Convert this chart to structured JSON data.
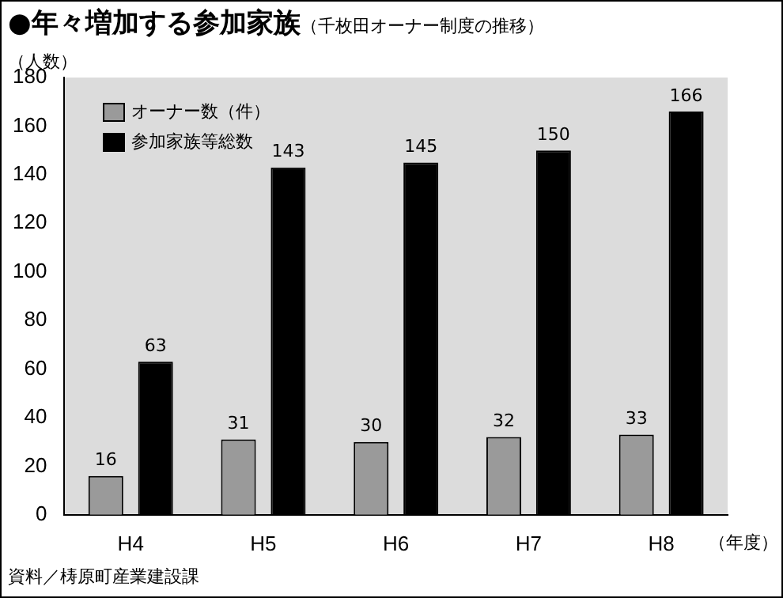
{
  "chart_data": {
    "type": "bar",
    "title": "●年々増加する参加家族",
    "subtitle": "（千枚田オーナー制度の推移）",
    "ylabel": "（人数）",
    "xlabel": "（年度）",
    "categories": [
      "H4",
      "H5",
      "H6",
      "H7",
      "H8"
    ],
    "series": [
      {
        "name": "オーナー数（件）",
        "color": "#9a9a9a",
        "values": [
          16,
          31,
          30,
          32,
          33
        ]
      },
      {
        "name": "参加家族等総数",
        "color": "#000000",
        "values": [
          63,
          143,
          145,
          150,
          166
        ]
      }
    ],
    "ylim": [
      0,
      180
    ],
    "yticks": [
      0,
      20,
      40,
      60,
      80,
      100,
      120,
      140,
      160,
      180
    ],
    "grid": false,
    "legend": "top left",
    "data_labels": true,
    "annotations": [
      "資料／梼原町産業建設課"
    ]
  }
}
